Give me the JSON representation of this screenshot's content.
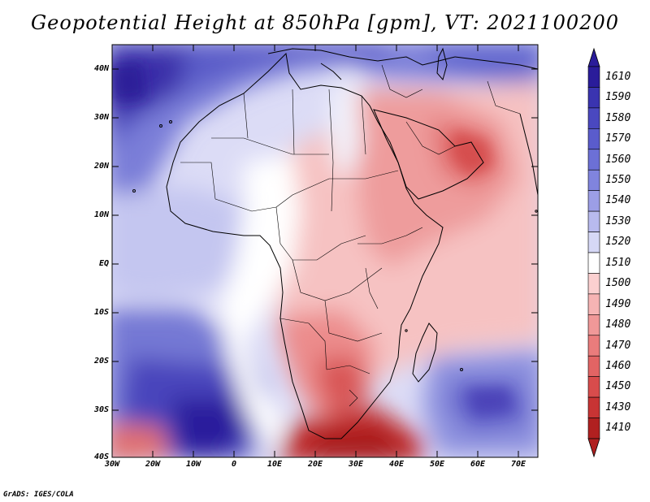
{
  "title": "Geopotential Height at 850hPa [gpm], VT: 2021100200",
  "credit": "GrADS: IGES/COLA",
  "lat_labels": [
    "40N",
    "30N",
    "20N",
    "10N",
    "EQ",
    "10S",
    "20S",
    "30S",
    "40S"
  ],
  "lon_labels": [
    "30W",
    "20W",
    "10W",
    "0",
    "10E",
    "20E",
    "30E",
    "40E",
    "50E",
    "60E",
    "70E"
  ],
  "colorbar": {
    "levels": [
      "1610",
      "1590",
      "1580",
      "1570",
      "1560",
      "1550",
      "1540",
      "1530",
      "1520",
      "1510",
      "1500",
      "1490",
      "1480",
      "1470",
      "1460",
      "1450",
      "1430",
      "1410"
    ],
    "colors": [
      "#2a1c9a",
      "#3a34b0",
      "#4a48c0",
      "#5a5ccc",
      "#6c70d6",
      "#8084de",
      "#9c9ee6",
      "#b8baee",
      "#d6d8f6",
      "#ffffff",
      "#fbd0d0",
      "#f6b4b4",
      "#f09898",
      "#ea7c7c",
      "#e26464",
      "#d84c4c",
      "#c83434",
      "#b02020"
    ]
  },
  "colors": {
    "ocean_blue_deep": "#3326a6",
    "blue_mid": "#6a6ed4",
    "blue_light": "#b4b6ec",
    "neutral": "#ffffff",
    "red_light": "#f8c4c4",
    "red_mid": "#ec8a8a",
    "red_deep": "#c03030"
  },
  "icons": [
    "coastline",
    "country-border"
  ]
}
